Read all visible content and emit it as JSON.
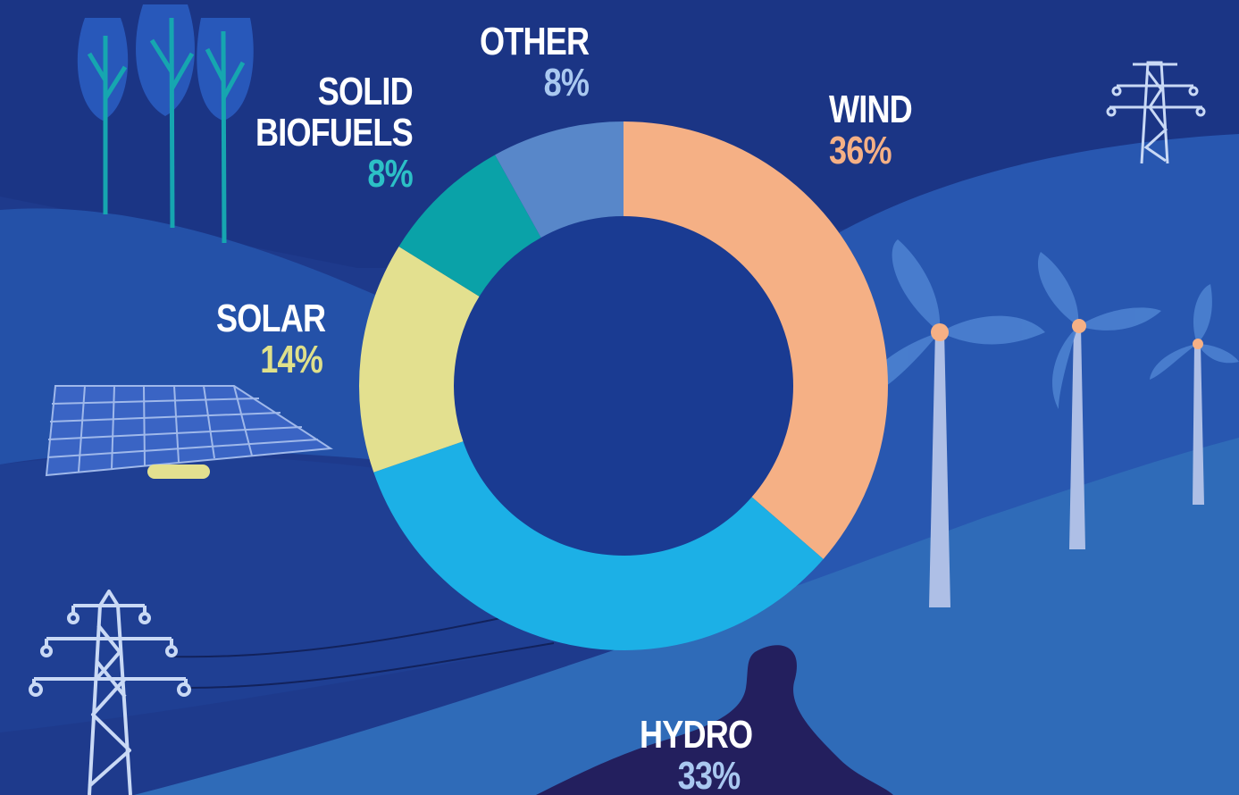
{
  "chart_data": {
    "type": "pie",
    "donut": true,
    "slices": [
      {
        "label": "WIND",
        "value": 36,
        "value_label": "36%",
        "color": "#f5b085"
      },
      {
        "label": "HYDRO",
        "value": 33,
        "value_label": "33%",
        "color": "#1cb0e6"
      },
      {
        "label": "SOLAR",
        "value": 14,
        "value_label": "14%",
        "color": "#e3e08f"
      },
      {
        "label": "SOLID BIOFUELS",
        "label_lines": [
          "SOLID",
          "BIOFUELS"
        ],
        "value": 8,
        "value_label": "8%",
        "color": "#0aa2a8"
      },
      {
        "label": "OTHER",
        "value": 8,
        "value_label": "8%",
        "color": "#5887c9"
      }
    ],
    "label_colors": {
      "WIND": "#f5b085",
      "HYDRO": "#a9c8f0",
      "SOLAR": "#dfe08a",
      "SOLID BIOFUELS": "#2cc0c6",
      "OTHER": "#a9c8f0"
    }
  },
  "colors": {
    "background": "#1e3a8c",
    "hill_dark": "#1d3f95",
    "hill_mid": "#2852ab",
    "hill_light": "#2f6bb8",
    "river": "#231f5e",
    "icon_light": "#c9d9f5",
    "blade": "#4a7fcf",
    "hub": "#f5b085"
  }
}
